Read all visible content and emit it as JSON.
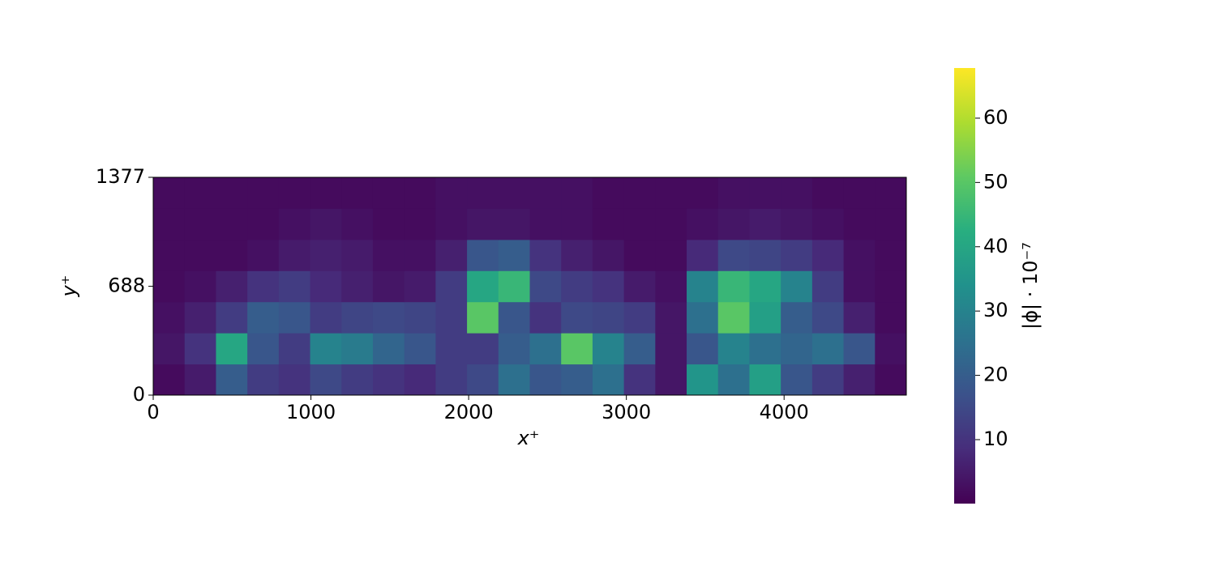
{
  "chart_data": {
    "type": "heatmap",
    "x_label": "x⁺",
    "y_label": "y⁺",
    "colorbar_label": "|ϕ| · 10⁻⁷",
    "colormap": "viridis",
    "xlim": [
      0,
      4775
    ],
    "xticks": [
      0,
      1000,
      2000,
      3000,
      4000
    ],
    "ylim": [
      0,
      1377
    ],
    "yticks": [
      0,
      688,
      1377
    ],
    "clim": [
      0.05,
      67.8
    ],
    "colorbar_ticks": [
      10,
      20,
      30,
      40,
      50,
      60
    ],
    "z": [
      [
        2,
        5,
        20,
        12,
        10,
        15,
        12,
        10,
        8,
        12,
        15,
        25,
        18,
        20,
        25,
        10,
        4,
        35,
        25,
        38,
        18,
        12,
        6,
        2
      ],
      [
        4,
        10,
        40,
        18,
        12,
        30,
        28,
        22,
        18,
        12,
        12,
        20,
        25,
        50,
        30,
        20,
        4,
        18,
        30,
        25,
        22,
        25,
        18,
        3
      ],
      [
        3,
        6,
        12,
        20,
        18,
        12,
        14,
        15,
        14,
        12,
        50,
        18,
        10,
        15,
        14,
        12,
        4,
        25,
        50,
        38,
        20,
        15,
        6,
        2
      ],
      [
        2,
        3,
        6,
        10,
        12,
        8,
        6,
        4,
        5,
        12,
        40,
        45,
        15,
        12,
        10,
        5,
        3,
        30,
        45,
        40,
        30,
        12,
        3,
        2
      ],
      [
        2,
        2,
        2,
        3,
        5,
        6,
        5,
        3,
        3,
        6,
        18,
        20,
        10,
        6,
        4,
        2,
        2,
        8,
        15,
        14,
        12,
        8,
        3,
        2
      ],
      [
        2,
        2,
        2,
        2,
        3,
        4,
        3,
        2,
        2,
        3,
        4,
        4,
        3,
        3,
        2,
        2,
        2,
        3,
        4,
        5,
        4,
        3,
        2,
        2
      ],
      [
        2,
        2,
        2,
        2,
        2,
        2,
        2,
        2,
        2,
        3,
        3,
        3,
        3,
        3,
        2,
        2,
        2,
        2,
        3,
        3,
        3,
        2,
        2,
        2
      ]
    ]
  }
}
